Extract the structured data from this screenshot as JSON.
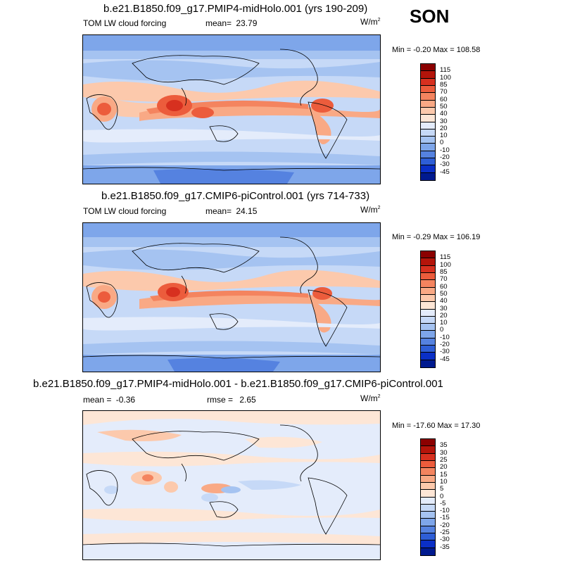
{
  "season": "SON",
  "panels": [
    {
      "title": "b.e21.B1850.f09_g17.PMIP4-midHolo.001 (yrs 190-209)",
      "left_label": "TOM LW cloud forcing",
      "mid_label": "mean=",
      "mid_value": "23.79",
      "extra_label": "",
      "extra_value": "",
      "units": "W/m",
      "units_sup": "2",
      "minmax": "Min =  -0.20 Max = 108.58",
      "colorbar_labels": [
        "115",
        "100",
        "85",
        "70",
        "60",
        "50",
        "40",
        "30",
        "20",
        "10",
        "0",
        "-10",
        "-20",
        "-30",
        "-45"
      ],
      "colorbar_colors": [
        "#8b0000",
        "#b4140a",
        "#d7301f",
        "#ec5c3c",
        "#f4845f",
        "#f9a985",
        "#fcc9ac",
        "#fde6d6",
        "#e4ecfb",
        "#c6d9f7",
        "#a5c3f1",
        "#7ea6ea",
        "#5582e0",
        "#2e5ed6",
        "#0a2fc6",
        "#001a8f"
      ]
    },
    {
      "title": "b.e21.B1850.f09_g17.CMIP6-piControl.001 (yrs 714-733)",
      "left_label": "TOM LW cloud forcing",
      "mid_label": "mean=",
      "mid_value": "24.15",
      "extra_label": "",
      "extra_value": "",
      "units": "W/m",
      "units_sup": "2",
      "minmax": "Min =  -0.29 Max = 106.19",
      "colorbar_labels": [
        "115",
        "100",
        "85",
        "70",
        "60",
        "50",
        "40",
        "30",
        "20",
        "10",
        "0",
        "-10",
        "-20",
        "-30",
        "-45"
      ],
      "colorbar_colors": [
        "#8b0000",
        "#b4140a",
        "#d7301f",
        "#ec5c3c",
        "#f4845f",
        "#f9a985",
        "#fcc9ac",
        "#fde6d6",
        "#e4ecfb",
        "#c6d9f7",
        "#a5c3f1",
        "#7ea6ea",
        "#5582e0",
        "#2e5ed6",
        "#0a2fc6",
        "#001a8f"
      ]
    },
    {
      "title": "b.e21.B1850.f09_g17.PMIP4-midHolo.001 - b.e21.B1850.f09_g17.CMIP6-piControl.001",
      "left_label": "mean =",
      "left_value": "-0.36",
      "mid_label": "rmse =",
      "mid_value": "2.65",
      "units": "W/m",
      "units_sup": "2",
      "minmax": "Min = -17.60 Max =  17.30",
      "colorbar_labels": [
        "35",
        "30",
        "25",
        "20",
        "15",
        "10",
        "5",
        "0",
        "-5",
        "-10",
        "-15",
        "-20",
        "-25",
        "-30",
        "-35"
      ],
      "colorbar_colors": [
        "#8b0000",
        "#b4140a",
        "#d7301f",
        "#ec5c3c",
        "#f4845f",
        "#f9a985",
        "#fcc9ac",
        "#fde6d6",
        "#e4ecfb",
        "#c6d9f7",
        "#a5c3f1",
        "#7ea6ea",
        "#5582e0",
        "#2e5ed6",
        "#0a2fc6",
        "#001a8f"
      ]
    }
  ]
}
